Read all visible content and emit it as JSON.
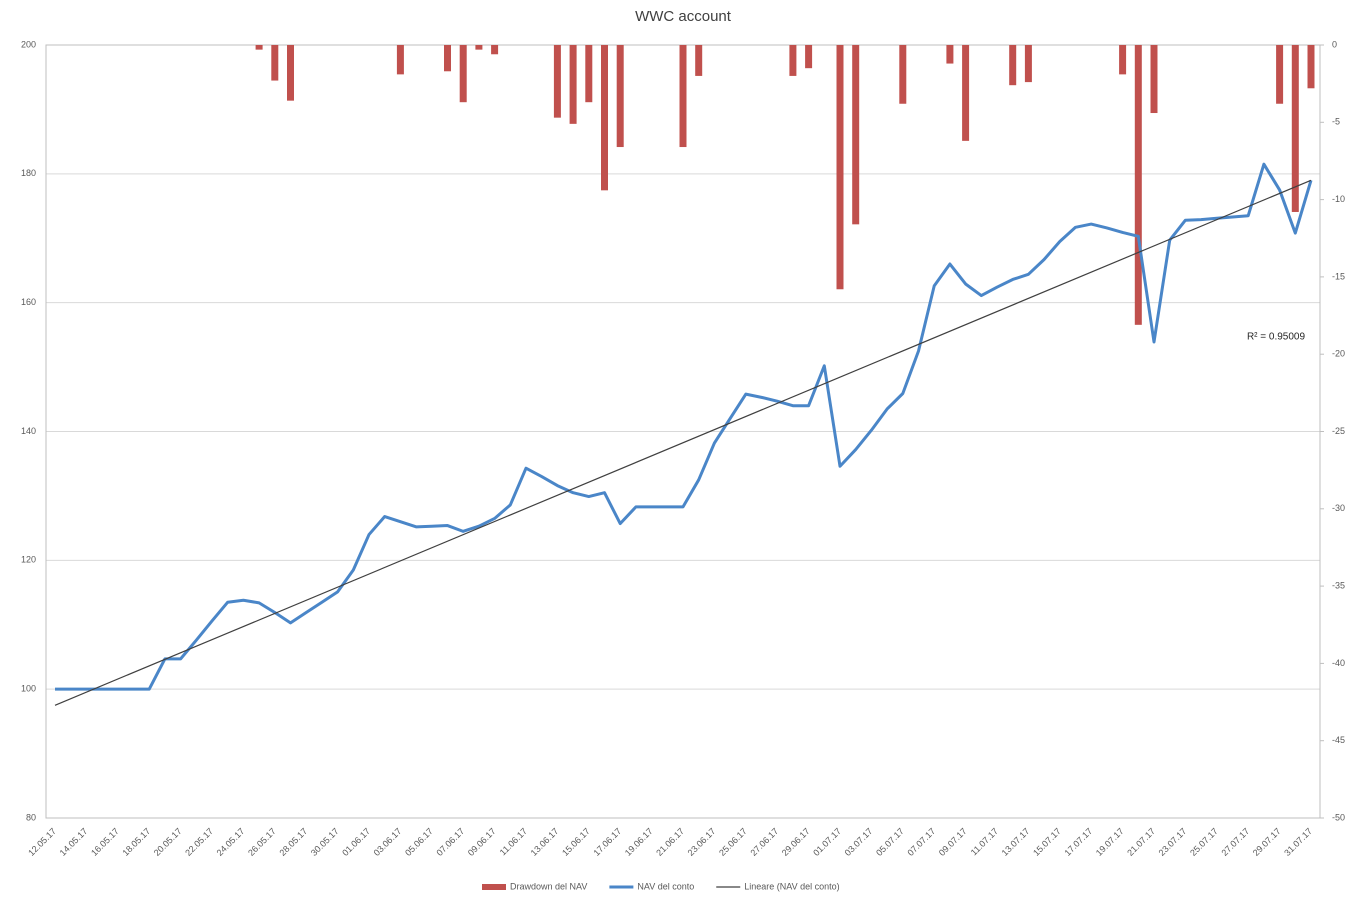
{
  "chart_data": {
    "type": "combo",
    "title": "WWC account",
    "categories": [
      "12.05.17",
      null,
      "14.05.17",
      null,
      "16.05.17",
      null,
      "18.05.17",
      null,
      "20.05.17",
      null,
      "22.05.17",
      null,
      "24.05.17",
      null,
      "26.05.17",
      null,
      "28.05.17",
      null,
      "30.05.17",
      null,
      "01.06.17",
      null,
      "03.06.17",
      null,
      "05.06.17",
      null,
      "07.06.17",
      null,
      "09.06.17",
      null,
      "11.06.17",
      null,
      "13.06.17",
      null,
      "15.06.17",
      null,
      "17.06.17",
      null,
      "19.06.17",
      null,
      "21.06.17",
      null,
      "23.06.17",
      null,
      "25.06.17",
      null,
      "27.06.17",
      null,
      "29.06.17",
      null,
      "01.07.17",
      null,
      "03.07.17",
      null,
      "05.07.17",
      null,
      "07.07.17",
      null,
      "09.07.17",
      null,
      "11.07.17",
      null,
      "13.07.17",
      null,
      "15.07.17",
      null,
      "17.07.17",
      null,
      "19.07.17",
      null,
      "21.07.17",
      null,
      "23.07.17",
      null,
      "25.07.17",
      null,
      "27.07.17",
      null,
      "29.07.17",
      null,
      "31.07.17"
    ],
    "series": [
      {
        "name": "Drawdown del NAV",
        "type": "bar",
        "axis": "y2",
        "color": "#c0504d",
        "values": [
          null,
          null,
          null,
          null,
          null,
          null,
          null,
          null,
          null,
          null,
          null,
          null,
          null,
          -0.3,
          -2.3,
          -3.6,
          null,
          null,
          null,
          null,
          null,
          null,
          -1.9,
          null,
          null,
          -1.7,
          -3.7,
          -0.3,
          -0.6,
          null,
          null,
          null,
          -4.7,
          -5.1,
          -3.7,
          -9.4,
          -6.6,
          null,
          null,
          null,
          -6.6,
          -2,
          null,
          null,
          null,
          null,
          null,
          -2,
          -1.5,
          null,
          -15.8,
          -11.6,
          null,
          null,
          -3.8,
          null,
          null,
          -1.2,
          -6.2,
          null,
          null,
          -2.6,
          -2.4,
          null,
          null,
          null,
          null,
          null,
          -1.9,
          -18.1,
          -4.4,
          null,
          null,
          null,
          null,
          null,
          null,
          null,
          -3.8,
          -10.8,
          -2.8
        ]
      },
      {
        "name": "NAV del conto",
        "type": "line",
        "color": "#4a86c8",
        "values": [
          100,
          100,
          100,
          100,
          100,
          100,
          100,
          104.7,
          104.7,
          107.6,
          110.6,
          113.5,
          113.8,
          113.4,
          111.9,
          110.3,
          111.9,
          113.5,
          115.1,
          118.5,
          124,
          126.8,
          126,
          125.2,
          125.3,
          125.4,
          124.5,
          125.3,
          126.5,
          128.6,
          134.3,
          133,
          131.6,
          130.5,
          129.9,
          130.5,
          125.7,
          128.3,
          128.3,
          128.3,
          128.3,
          132.5,
          138.2,
          142,
          145.8,
          145.3,
          144.7,
          144,
          144,
          150.2,
          134.6,
          137.2,
          140.2,
          143.5,
          145.9,
          152.5,
          162.6,
          166,
          162.9,
          161.1,
          162.4,
          163.6,
          164.4,
          166.7,
          169.5,
          171.7,
          172.2,
          171.6,
          170.9,
          170.3,
          153.9,
          169.7,
          172.8,
          172.9,
          173.1,
          173.3,
          173.5,
          181.5,
          177.5,
          170.8,
          179
        ]
      }
    ],
    "trendline": {
      "name": "Lineare (NAV del conto)",
      "color": "#404040",
      "values": [
        97.5,
        179
      ],
      "annotation": "R² = 0.95009"
    },
    "ylim": [
      80,
      200
    ],
    "yticks": [
      80,
      100,
      120,
      140,
      160,
      180,
      200
    ],
    "y2lim": [
      -50,
      0
    ],
    "y2ticks": [
      0,
      -5,
      -10,
      -15,
      -20,
      -25,
      -30,
      -35,
      -40,
      -45,
      -50
    ],
    "grid": true
  }
}
